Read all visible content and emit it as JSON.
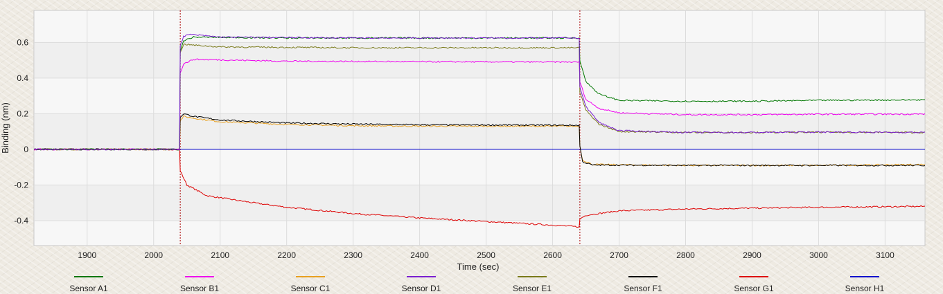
{
  "chart_data": {
    "type": "line",
    "xlabel": "Time (sec)",
    "ylabel": "Binding (nm)",
    "xlim": [
      1820,
      3160
    ],
    "ylim": [
      -0.54,
      0.78
    ],
    "x_ticks": [
      1900,
      2000,
      2100,
      2200,
      2300,
      2400,
      2500,
      2600,
      2700,
      2800,
      2900,
      3000,
      3100
    ],
    "x_tick_labels": [
      "1900",
      "2000",
      "2100",
      "2200",
      "2300",
      "2400",
      "2500",
      "2600",
      "2700",
      "2800",
      "2900",
      "3000",
      "3100"
    ],
    "y_ticks": [
      -0.4,
      -0.2,
      0,
      0.2,
      0.4,
      0.6
    ],
    "y_tick_labels": [
      "-0.4",
      "-0.2",
      "0",
      "0.2",
      "0.4",
      "0.6"
    ],
    "grid": true,
    "legend_position": "bottom",
    "step_markers": [
      {
        "x": 2040,
        "color": "#aa0000"
      },
      {
        "x": 2641,
        "color": "#aa0000"
      }
    ],
    "series": [
      {
        "name": "Sensor A1",
        "color": "#007700",
        "points": [
          [
            1820,
            0
          ],
          [
            2039,
            0
          ],
          [
            2040,
            0.55
          ],
          [
            2045,
            0.61
          ],
          [
            2060,
            0.63
          ],
          [
            2200,
            0.625
          ],
          [
            2400,
            0.625
          ],
          [
            2640,
            0.625
          ],
          [
            2641,
            0.5
          ],
          [
            2650,
            0.38
          ],
          [
            2670,
            0.31
          ],
          [
            2700,
            0.275
          ],
          [
            2800,
            0.27
          ],
          [
            2900,
            0.27
          ],
          [
            3000,
            0.275
          ],
          [
            3160,
            0.278
          ]
        ]
      },
      {
        "name": "Sensor B1",
        "color": "#ee00ee",
        "points": [
          [
            1820,
            0
          ],
          [
            2039,
            0
          ],
          [
            2040,
            0.43
          ],
          [
            2045,
            0.48
          ],
          [
            2060,
            0.505
          ],
          [
            2200,
            0.495
          ],
          [
            2400,
            0.492
          ],
          [
            2640,
            0.49
          ],
          [
            2641,
            0.38
          ],
          [
            2650,
            0.28
          ],
          [
            2670,
            0.23
          ],
          [
            2700,
            0.205
          ],
          [
            2800,
            0.195
          ],
          [
            2900,
            0.195
          ],
          [
            3000,
            0.197
          ],
          [
            3160,
            0.198
          ]
        ]
      },
      {
        "name": "Sensor C1",
        "color": "#e8a020",
        "points": [
          [
            1820,
            0
          ],
          [
            2039,
            0
          ],
          [
            2040,
            0.16
          ],
          [
            2045,
            0.185
          ],
          [
            2060,
            0.175
          ],
          [
            2100,
            0.155
          ],
          [
            2200,
            0.14
          ],
          [
            2300,
            0.133
          ],
          [
            2400,
            0.13
          ],
          [
            2640,
            0.13
          ],
          [
            2641,
            0.02
          ],
          [
            2645,
            -0.06
          ],
          [
            2660,
            -0.085
          ],
          [
            2800,
            -0.09
          ],
          [
            3000,
            -0.09
          ],
          [
            3160,
            -0.085
          ]
        ]
      },
      {
        "name": "Sensor D1",
        "color": "#7a1fd0",
        "points": [
          [
            1820,
            0
          ],
          [
            2039,
            0
          ],
          [
            2040,
            0.58
          ],
          [
            2045,
            0.635
          ],
          [
            2055,
            0.645
          ],
          [
            2100,
            0.63
          ],
          [
            2300,
            0.625
          ],
          [
            2640,
            0.625
          ],
          [
            2641,
            0.35
          ],
          [
            2650,
            0.24
          ],
          [
            2670,
            0.15
          ],
          [
            2700,
            0.105
          ],
          [
            2800,
            0.095
          ],
          [
            2900,
            0.095
          ],
          [
            3000,
            0.097
          ],
          [
            3160,
            0.095
          ]
        ]
      },
      {
        "name": "Sensor E1",
        "color": "#7a7a1a",
        "points": [
          [
            1820,
            0
          ],
          [
            2039,
            0
          ],
          [
            2040,
            0.54
          ],
          [
            2045,
            0.59
          ],
          [
            2060,
            0.585
          ],
          [
            2100,
            0.575
          ],
          [
            2300,
            0.57
          ],
          [
            2640,
            0.57
          ],
          [
            2641,
            0.32
          ],
          [
            2650,
            0.22
          ],
          [
            2670,
            0.14
          ],
          [
            2700,
            0.1
          ],
          [
            2800,
            0.095
          ],
          [
            2900,
            0.095
          ],
          [
            3000,
            0.096
          ],
          [
            3160,
            0.095
          ]
        ]
      },
      {
        "name": "Sensor F1",
        "color": "#000000",
        "points": [
          [
            1820,
            0
          ],
          [
            2039,
            0
          ],
          [
            2040,
            0.18
          ],
          [
            2045,
            0.2
          ],
          [
            2060,
            0.185
          ],
          [
            2100,
            0.165
          ],
          [
            2200,
            0.148
          ],
          [
            2300,
            0.142
          ],
          [
            2400,
            0.138
          ],
          [
            2640,
            0.135
          ],
          [
            2641,
            0.02
          ],
          [
            2645,
            -0.07
          ],
          [
            2660,
            -0.088
          ],
          [
            2800,
            -0.09
          ],
          [
            3000,
            -0.09
          ],
          [
            3160,
            -0.09
          ]
        ]
      },
      {
        "name": "Sensor G1",
        "color": "#dd0000",
        "points": [
          [
            1820,
            0
          ],
          [
            2039,
            0
          ],
          [
            2040,
            -0.12
          ],
          [
            2050,
            -0.2
          ],
          [
            2080,
            -0.26
          ],
          [
            2150,
            -0.3
          ],
          [
            2200,
            -0.325
          ],
          [
            2300,
            -0.36
          ],
          [
            2400,
            -0.385
          ],
          [
            2500,
            -0.405
          ],
          [
            2600,
            -0.425
          ],
          [
            2640,
            -0.435
          ],
          [
            2641,
            -0.39
          ],
          [
            2650,
            -0.37
          ],
          [
            2700,
            -0.345
          ],
          [
            2800,
            -0.335
          ],
          [
            2900,
            -0.33
          ],
          [
            3000,
            -0.325
          ],
          [
            3160,
            -0.32
          ]
        ]
      },
      {
        "name": "Sensor H1",
        "color": "#0000cc",
        "points": [
          [
            1820,
            0
          ],
          [
            3160,
            0
          ]
        ]
      }
    ]
  }
}
